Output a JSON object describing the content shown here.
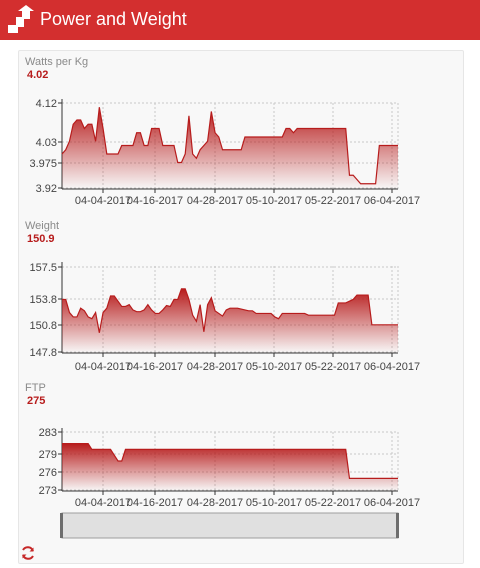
{
  "app": {
    "title": "Power and Weight"
  },
  "colors": {
    "brand": "#d32f2f",
    "series": "#b71c1c",
    "grid": "#c8c8c8"
  },
  "icons": {
    "logo": "chart-arrow-icon",
    "refresh": "refresh-icon"
  },
  "chart_data": [
    {
      "type": "area",
      "title": "Watts per Kg",
      "current_value": "4.02",
      "x_ticks": [
        "04-04-2017",
        "04-16-2017",
        "04-28-2017",
        "05-10-2017",
        "05-22-2017",
        "06-04-2017"
      ],
      "y_ticks": [
        "4.12",
        "4.03",
        "3.975",
        "3.92"
      ],
      "ylim": [
        3.92,
        4.12
      ],
      "grid": true,
      "x": [
        0,
        1,
        2,
        3,
        4,
        5,
        6,
        7,
        8,
        9,
        10,
        11,
        12,
        13,
        14,
        15,
        16,
        17,
        18,
        19,
        20,
        21,
        22,
        23,
        24,
        25,
        26,
        27,
        28,
        29,
        30,
        31,
        32,
        33,
        34,
        35,
        36,
        37,
        38,
        39,
        40,
        41,
        42,
        43,
        44,
        45,
        46,
        47,
        48,
        49,
        50,
        51,
        52,
        53,
        54,
        55,
        56,
        57,
        58,
        59,
        60,
        61,
        62,
        63,
        64,
        65,
        66,
        67,
        68,
        69,
        70,
        71,
        72,
        73,
        74,
        75,
        76,
        77,
        78,
        79,
        80,
        81,
        82,
        83,
        84,
        85,
        86,
        87,
        88,
        89,
        90
      ],
      "values": [
        4.0,
        4.01,
        4.03,
        4.07,
        4.08,
        4.08,
        4.06,
        4.07,
        4.07,
        4.03,
        4.11,
        4.06,
        4.0,
        4.0,
        4.0,
        4.0,
        4.02,
        4.02,
        4.02,
        4.02,
        4.05,
        4.05,
        4.02,
        4.02,
        4.06,
        4.06,
        4.06,
        4.02,
        4.02,
        4.02,
        4.02,
        3.98,
        3.98,
        4.0,
        4.09,
        4.0,
        3.99,
        4.01,
        4.02,
        4.03,
        4.1,
        4.05,
        4.04,
        4.01,
        4.01,
        4.01,
        4.01,
        4.01,
        4.01,
        4.04,
        4.04,
        4.04,
        4.04,
        4.04,
        4.04,
        4.04,
        4.04,
        4.04,
        4.04,
        4.04,
        4.06,
        4.06,
        4.05,
        4.06,
        4.06,
        4.06,
        4.06,
        4.06,
        4.06,
        4.06,
        4.06,
        4.06,
        4.06,
        4.06,
        4.06,
        4.06,
        4.06,
        3.95,
        3.95,
        3.94,
        3.93,
        3.93,
        3.93,
        3.93,
        3.93,
        4.02,
        4.02,
        4.02,
        4.02,
        4.02,
        4.02
      ]
    },
    {
      "type": "area",
      "title": "Weight",
      "current_value": "150.9",
      "x_ticks": [
        "04-04-2017",
        "04-16-2017",
        "04-28-2017",
        "05-10-2017",
        "05-22-2017",
        "06-04-2017"
      ],
      "y_ticks": [
        "157.5",
        "153.8",
        "150.8",
        "147.8"
      ],
      "ylim": [
        147.8,
        157.5
      ],
      "grid": true,
      "x": [
        0,
        1,
        2,
        3,
        4,
        5,
        6,
        7,
        8,
        9,
        10,
        11,
        12,
        13,
        14,
        15,
        16,
        17,
        18,
        19,
        20,
        21,
        22,
        23,
        24,
        25,
        26,
        27,
        28,
        29,
        30,
        31,
        32,
        33,
        34,
        35,
        36,
        37,
        38,
        39,
        40,
        41,
        42,
        43,
        44,
        45,
        46,
        47,
        48,
        49,
        50,
        51,
        52,
        53,
        54,
        55,
        56,
        57,
        58,
        59,
        60,
        61,
        62,
        63,
        64,
        65,
        66,
        67,
        68,
        69,
        70,
        71,
        72,
        73,
        74,
        75,
        76,
        77,
        78,
        79,
        80,
        81,
        82,
        83,
        84,
        85,
        86,
        87,
        88,
        89,
        90
      ],
      "values": [
        153.8,
        153.8,
        152.3,
        151.8,
        151.8,
        152.8,
        152.5,
        151.8,
        151.6,
        152.3,
        150.0,
        152.3,
        152.8,
        154.2,
        154.2,
        153.6,
        153.0,
        153.0,
        153.2,
        152.6,
        152.4,
        152.4,
        152.6,
        153.2,
        152.6,
        152.2,
        152.2,
        152.6,
        153.1,
        153.0,
        153.8,
        153.8,
        155.0,
        155.0,
        153.8,
        152.0,
        151.3,
        153.2,
        150.1,
        153.2,
        154.0,
        152.5,
        152.2,
        151.9,
        152.6,
        152.8,
        152.8,
        152.8,
        152.7,
        152.6,
        152.5,
        152.5,
        152.2,
        152.2,
        152.2,
        152.2,
        152.2,
        151.8,
        151.6,
        152.2,
        152.2,
        152.2,
        152.2,
        152.2,
        152.2,
        152.2,
        152.0,
        152.0,
        152.0,
        152.0,
        152.0,
        152.0,
        152.0,
        152.0,
        153.4,
        153.4,
        153.4,
        153.6,
        153.8,
        154.3,
        154.3,
        154.3,
        154.3,
        150.9,
        150.9,
        150.9,
        150.9,
        150.9,
        150.9,
        150.9,
        150.9
      ]
    },
    {
      "type": "area",
      "title": "FTP",
      "current_value": "275",
      "x_ticks": [
        "04-04-2017",
        "04-16-2017",
        "04-28-2017",
        "05-10-2017",
        "05-22-2017",
        "06-04-2017"
      ],
      "y_ticks": [
        "283",
        "279",
        "276",
        "273"
      ],
      "ylim": [
        273,
        283
      ],
      "grid": true,
      "x": [
        0,
        1,
        2,
        3,
        4,
        5,
        6,
        7,
        8,
        9,
        10,
        11,
        12,
        13,
        14,
        15,
        16,
        17,
        18,
        19,
        20,
        21,
        22,
        23,
        24,
        25,
        26,
        27,
        28,
        29,
        30,
        31,
        32,
        33,
        34,
        35,
        36,
        37,
        38,
        39,
        40,
        41,
        42,
        43,
        44,
        45,
        46,
        47,
        48,
        49,
        50,
        51,
        52,
        53,
        54,
        55,
        56,
        57,
        58,
        59,
        60,
        61,
        62,
        63,
        64,
        65,
        66,
        67,
        68,
        69,
        70,
        71,
        72,
        73,
        74,
        75,
        76,
        77,
        78,
        79,
        80,
        81,
        82,
        83,
        84,
        85,
        86,
        87,
        88,
        89,
        90
      ],
      "values": [
        281,
        281,
        281,
        281,
        281,
        281,
        281,
        281,
        280,
        280,
        280,
        280,
        280,
        280,
        279,
        278,
        278,
        280,
        280,
        280,
        280,
        280,
        280,
        280,
        280,
        280,
        280,
        280,
        280,
        280,
        280,
        280,
        280,
        280,
        280,
        280,
        280,
        280,
        280,
        280,
        280,
        280,
        280,
        280,
        280,
        280,
        280,
        280,
        280,
        280,
        280,
        280,
        280,
        280,
        280,
        280,
        280,
        280,
        280,
        280,
        280,
        280,
        280,
        280,
        280,
        280,
        280,
        280,
        280,
        280,
        280,
        280,
        280,
        280,
        280,
        280,
        280,
        275,
        275,
        275,
        275,
        275,
        275,
        275,
        275,
        275,
        275,
        275,
        275,
        275,
        275
      ]
    }
  ]
}
